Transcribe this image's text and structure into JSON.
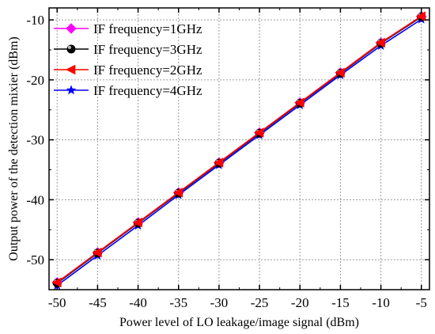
{
  "chart_data": {
    "type": "line",
    "title": "",
    "xlabel": "Power level of LO leakage/image signal (dBm)",
    "ylabel": "Output power of the detection mixier (dBm)",
    "xlim": [
      -51,
      -4
    ],
    "ylim": [
      -55,
      -8
    ],
    "xticks": [
      -50,
      -45,
      -40,
      -35,
      -30,
      -25,
      -20,
      -15,
      -10,
      -5
    ],
    "yticks": [
      -50,
      -40,
      -30,
      -20,
      -10
    ],
    "grid": true,
    "legend_position": "top-left",
    "x": [
      -50,
      -45,
      -40,
      -35,
      -30,
      -25,
      -20,
      -15,
      -10,
      -5
    ],
    "series": [
      {
        "name": "IF frequency=1GHz",
        "color": "#ff00ff",
        "marker": "diamond",
        "values": [
          -53.8,
          -48.8,
          -43.8,
          -38.8,
          -33.8,
          -28.8,
          -23.8,
          -18.8,
          -13.8,
          -9.4
        ]
      },
      {
        "name": "IF frequency=3GHz",
        "color": "#000000",
        "marker": "sphere",
        "values": [
          -53.9,
          -48.9,
          -43.9,
          -38.9,
          -33.9,
          -28.9,
          -23.9,
          -18.9,
          -13.9,
          -9.5
        ]
      },
      {
        "name": "IF frequency=2GHz",
        "color": "#ff0000",
        "marker": "triangle-left",
        "values": [
          -53.8,
          -48.8,
          -43.8,
          -38.8,
          -33.8,
          -28.8,
          -23.8,
          -18.8,
          -13.8,
          -9.4
        ]
      },
      {
        "name": "IF frequency=4GHz",
        "color": "#0000ff",
        "marker": "star",
        "values": [
          -54.3,
          -49.3,
          -44.3,
          -39.2,
          -34.2,
          -29.2,
          -24.2,
          -19.2,
          -14.3,
          -9.9
        ]
      }
    ]
  }
}
